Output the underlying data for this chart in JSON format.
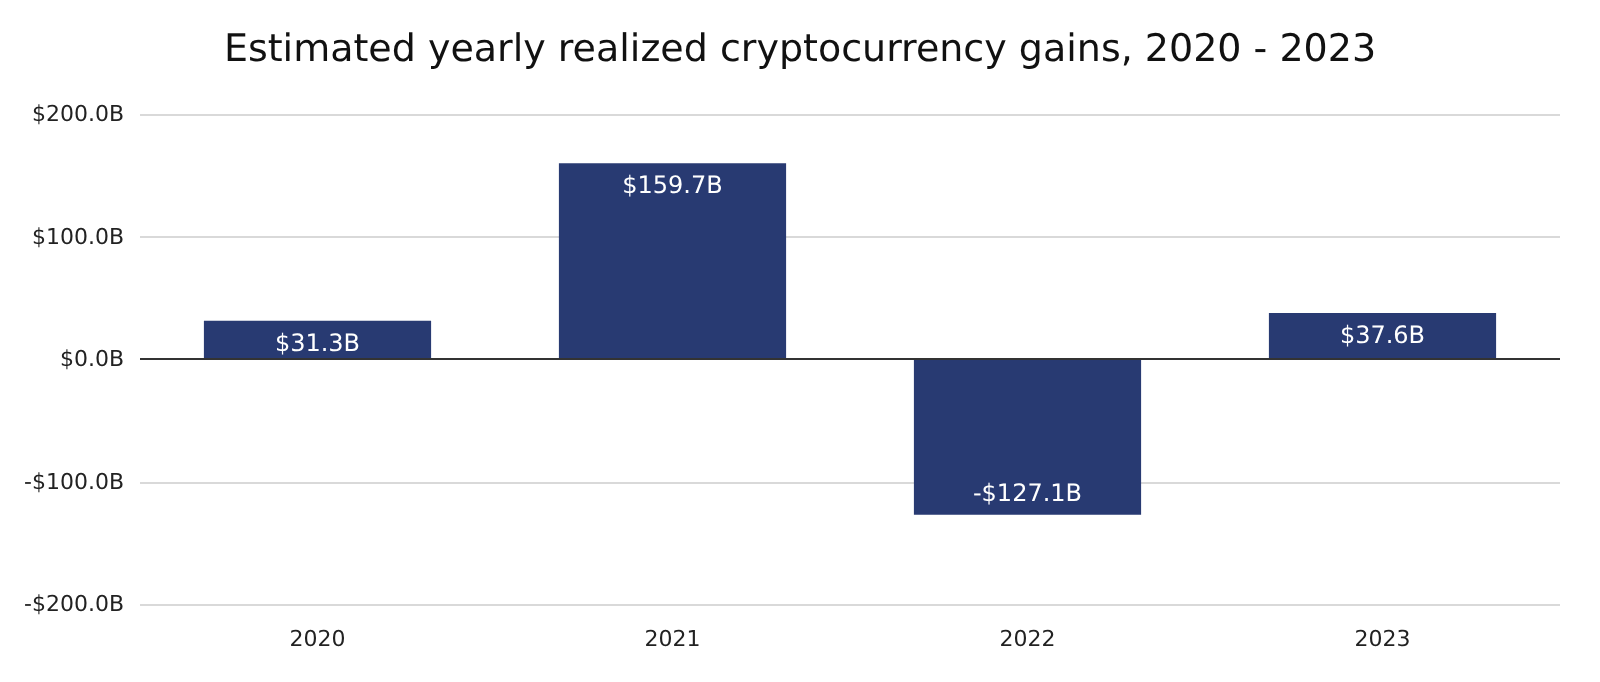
{
  "chart_data": {
    "type": "bar",
    "title": "Estimated yearly realized cryptocurrency gains, 2020 - 2023",
    "categories": [
      "2020",
      "2021",
      "2022",
      "2023"
    ],
    "values": [
      31.3,
      159.7,
      -127.1,
      37.6
    ],
    "value_labels": [
      "$31.3B",
      "$159.7B",
      "-$127.1B",
      "$37.6B"
    ],
    "color": "#283a72",
    "ylim": [
      -200,
      200
    ],
    "yticks": [
      {
        "value": -200,
        "label": "-$200.0B"
      },
      {
        "value": -100,
        "label": "-$100.0B"
      },
      {
        "value": 0,
        "label": "$0.0B"
      },
      {
        "value": 100,
        "label": "$100.0B"
      },
      {
        "value": 200,
        "label": "$200.0B"
      }
    ],
    "grid": "y"
  }
}
